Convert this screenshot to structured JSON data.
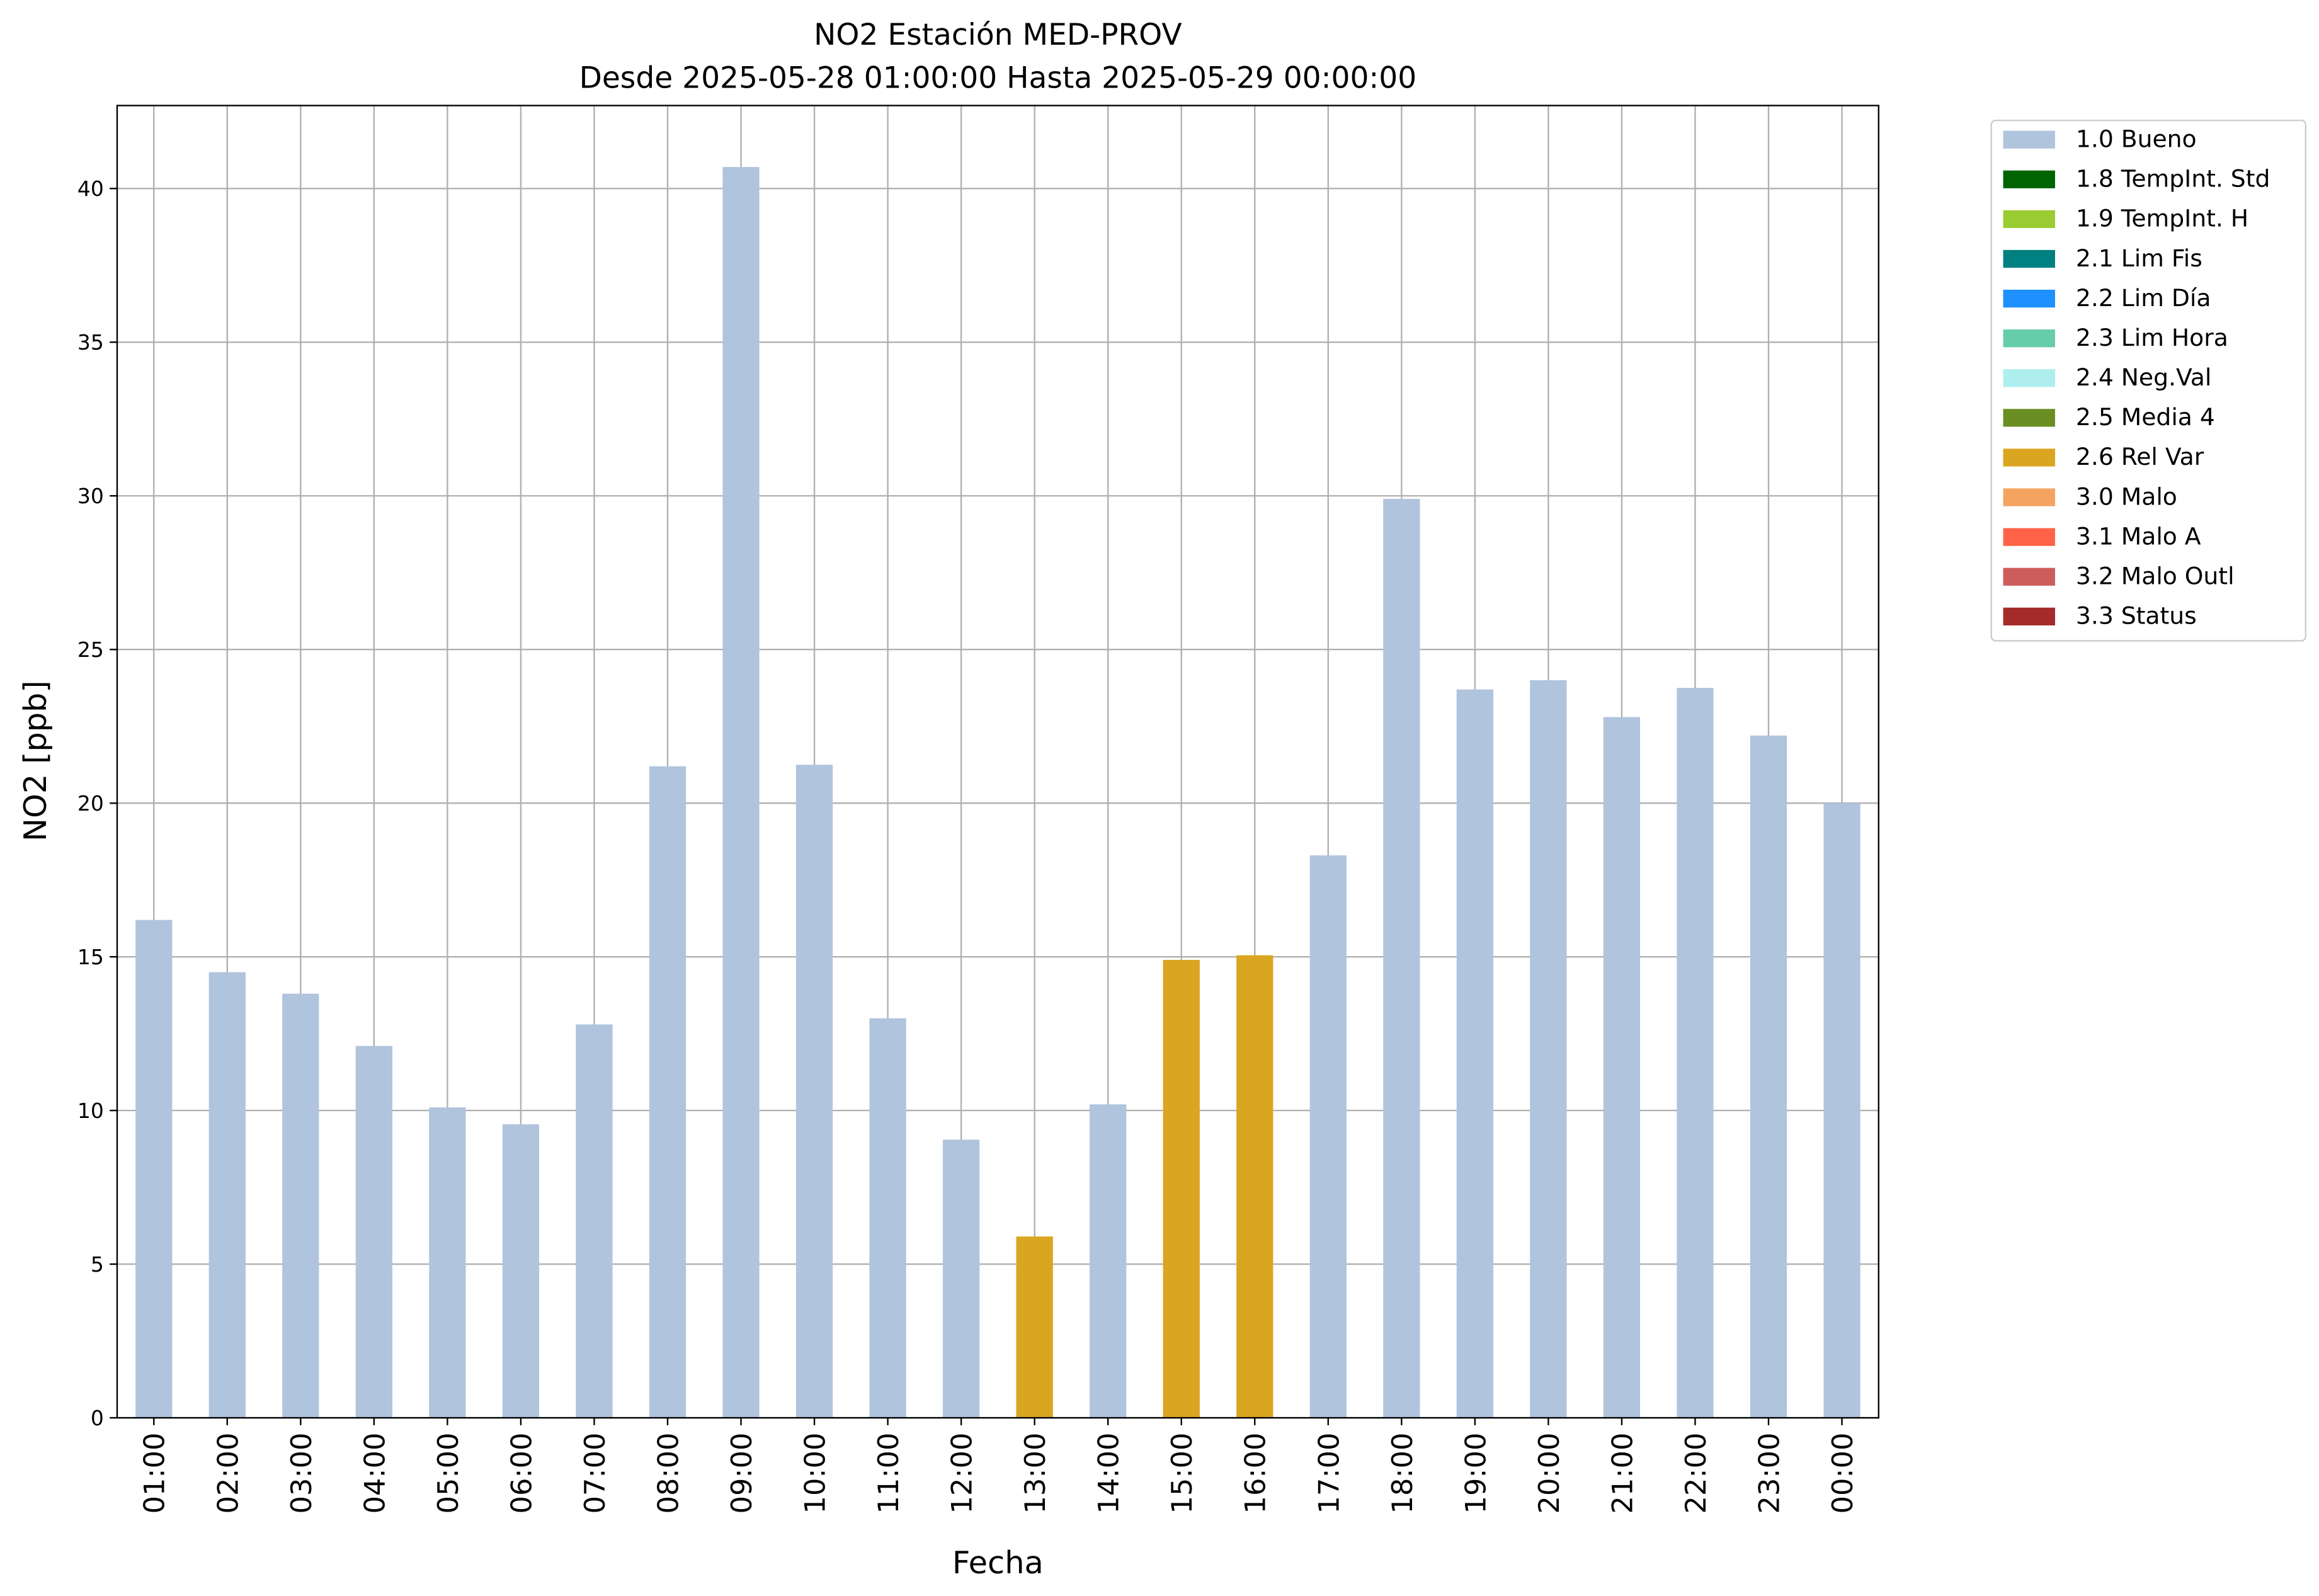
{
  "chart_data": {
    "type": "bar",
    "stacked": true,
    "title": "NO2 Estación MED-PROV",
    "subtitle": "Desde 2025-05-28 01:00:00 Hasta 2025-05-29 00:00:00",
    "x_label": "Fecha",
    "y_label": "NO2 [ppb]",
    "categories": [
      "01:00",
      "02:00",
      "03:00",
      "04:00",
      "05:00",
      "06:00",
      "07:00",
      "08:00",
      "09:00",
      "10:00",
      "11:00",
      "12:00",
      "13:00",
      "14:00",
      "15:00",
      "16:00",
      "17:00",
      "18:00",
      "19:00",
      "20:00",
      "21:00",
      "22:00",
      "23:00",
      "00:00"
    ],
    "series": [
      {
        "name": "1.0 Bueno",
        "color": "#b0c4de",
        "values": [
          16.2,
          14.5,
          13.8,
          12.1,
          10.1,
          9.55,
          12.8,
          21.2,
          40.7,
          21.25,
          13.0,
          9.05,
          null,
          10.2,
          null,
          null,
          18.3,
          29.9,
          23.7,
          24.0,
          22.8,
          23.75,
          22.2,
          20.0
        ]
      },
      {
        "name": "1.8 TempInt. Std",
        "color": "#006400",
        "values": [
          null,
          null,
          null,
          null,
          null,
          null,
          null,
          null,
          null,
          null,
          null,
          null,
          null,
          null,
          null,
          null,
          null,
          null,
          null,
          null,
          null,
          null,
          null,
          null
        ]
      },
      {
        "name": "1.9 TempInt. H",
        "color": "#9acd32",
        "values": [
          null,
          null,
          null,
          null,
          null,
          null,
          null,
          null,
          null,
          null,
          null,
          null,
          null,
          null,
          null,
          null,
          null,
          null,
          null,
          null,
          null,
          null,
          null,
          null
        ]
      },
      {
        "name": "2.1 Lim Fis",
        "color": "#008080",
        "values": [
          null,
          null,
          null,
          null,
          null,
          null,
          null,
          null,
          null,
          null,
          null,
          null,
          null,
          null,
          null,
          null,
          null,
          null,
          null,
          null,
          null,
          null,
          null,
          null
        ]
      },
      {
        "name": "2.2 Lim Día",
        "color": "#1e90ff",
        "values": [
          null,
          null,
          null,
          null,
          null,
          null,
          null,
          null,
          null,
          null,
          null,
          null,
          null,
          null,
          null,
          null,
          null,
          null,
          null,
          null,
          null,
          null,
          null,
          null
        ]
      },
      {
        "name": "2.3 Lim Hora",
        "color": "#66cdaa",
        "values": [
          null,
          null,
          null,
          null,
          null,
          null,
          null,
          null,
          null,
          null,
          null,
          null,
          null,
          null,
          null,
          null,
          null,
          null,
          null,
          null,
          null,
          null,
          null,
          null
        ]
      },
      {
        "name": "2.4 Neg.Val",
        "color": "#afeeee",
        "values": [
          null,
          null,
          null,
          null,
          null,
          null,
          null,
          null,
          null,
          null,
          null,
          null,
          null,
          null,
          null,
          null,
          null,
          null,
          null,
          null,
          null,
          null,
          null,
          null
        ]
      },
      {
        "name": "2.5 Media 4",
        "color": "#6b8e23",
        "values": [
          null,
          null,
          null,
          null,
          null,
          null,
          null,
          null,
          null,
          null,
          null,
          null,
          null,
          null,
          null,
          null,
          null,
          null,
          null,
          null,
          null,
          null,
          null,
          null
        ]
      },
      {
        "name": "2.6 Rel Var",
        "color": "#daa520",
        "values": [
          null,
          null,
          null,
          null,
          null,
          null,
          null,
          null,
          null,
          null,
          null,
          null,
          5.9,
          null,
          14.9,
          15.05,
          null,
          null,
          null,
          null,
          null,
          null,
          null,
          null
        ]
      },
      {
        "name": "3.0 Malo",
        "color": "#f4a460",
        "values": [
          null,
          null,
          null,
          null,
          null,
          null,
          null,
          null,
          null,
          null,
          null,
          null,
          null,
          null,
          null,
          null,
          null,
          null,
          null,
          null,
          null,
          null,
          null,
          null
        ]
      },
      {
        "name": "3.1 Malo A",
        "color": "#ff6347",
        "values": [
          null,
          null,
          null,
          null,
          null,
          null,
          null,
          null,
          null,
          null,
          null,
          null,
          null,
          null,
          null,
          null,
          null,
          null,
          null,
          null,
          null,
          null,
          null,
          null
        ]
      },
      {
        "name": "3.2 Malo Outl",
        "color": "#cd5c5c",
        "values": [
          null,
          null,
          null,
          null,
          null,
          null,
          null,
          null,
          null,
          null,
          null,
          null,
          null,
          null,
          null,
          null,
          null,
          null,
          null,
          null,
          null,
          null,
          null,
          null
        ]
      },
      {
        "name": "3.3 Status",
        "color": "#a52a2a",
        "values": [
          null,
          null,
          null,
          null,
          null,
          null,
          null,
          null,
          null,
          null,
          null,
          null,
          null,
          null,
          null,
          null,
          null,
          null,
          null,
          null,
          null,
          null,
          null,
          null
        ]
      }
    ],
    "ylim": [
      0,
      42.7
    ],
    "yticks": [
      0,
      5,
      10,
      15,
      20,
      25,
      30,
      35,
      40
    ],
    "grid": true,
    "legend": "outside-right"
  }
}
